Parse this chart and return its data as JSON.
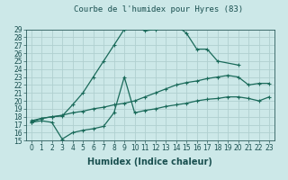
{
  "title": "Courbe de l'humidex pour Hyres (83)",
  "xlabel": "Humidex (Indice chaleur)",
  "xlim": [
    -0.5,
    23.5
  ],
  "ylim": [
    15,
    29
  ],
  "xticks": [
    0,
    1,
    2,
    3,
    4,
    5,
    6,
    7,
    8,
    9,
    10,
    11,
    12,
    13,
    14,
    15,
    16,
    17,
    18,
    19,
    20,
    21,
    22,
    23
  ],
  "yticks": [
    15,
    16,
    17,
    18,
    19,
    20,
    21,
    22,
    23,
    24,
    25,
    26,
    27,
    28,
    29
  ],
  "bg_color": "#cce8e8",
  "grid_color": "#b0d0d0",
  "line_color": "#1a6a5a",
  "curve1_x": [
    0,
    1,
    2,
    3,
    4,
    5,
    6,
    7,
    8,
    9,
    10,
    11,
    12,
    13,
    14,
    15,
    16,
    17,
    18,
    20
  ],
  "curve1_y": [
    17.3,
    17.8,
    18.0,
    18.1,
    19.5,
    21.0,
    23.0,
    25.0,
    27.0,
    29.0,
    29.5,
    28.8,
    29.0,
    29.5,
    29.5,
    28.5,
    26.5,
    26.5,
    25.0,
    24.5
  ],
  "curve2_x": [
    0,
    1,
    2,
    3,
    4,
    5,
    6,
    7,
    8,
    9,
    10,
    11,
    12,
    13,
    14,
    15,
    16,
    17,
    18,
    19,
    20,
    21,
    22,
    23
  ],
  "curve2_y": [
    17.5,
    17.8,
    18.0,
    18.2,
    18.5,
    18.7,
    19.0,
    19.2,
    19.5,
    19.7,
    20.0,
    20.5,
    21.0,
    21.5,
    22.0,
    22.3,
    22.5,
    22.8,
    23.0,
    23.2,
    23.0,
    22.0,
    22.2,
    22.2
  ],
  "curve3_x": [
    0,
    1,
    2,
    3,
    4,
    5,
    6,
    7,
    8,
    9,
    10,
    11,
    12,
    13,
    14,
    15,
    16,
    17,
    18,
    19,
    20,
    21,
    22,
    23
  ],
  "curve3_y": [
    17.3,
    17.5,
    17.3,
    15.2,
    16.0,
    16.3,
    16.5,
    16.8,
    18.5,
    23.0,
    18.5,
    18.8,
    19.0,
    19.3,
    19.5,
    19.7,
    20.0,
    20.2,
    20.3,
    20.5,
    20.5,
    20.3,
    20.0,
    20.5
  ],
  "title_fontsize": 6.5,
  "tick_fontsize": 5.5,
  "xlabel_fontsize": 7
}
